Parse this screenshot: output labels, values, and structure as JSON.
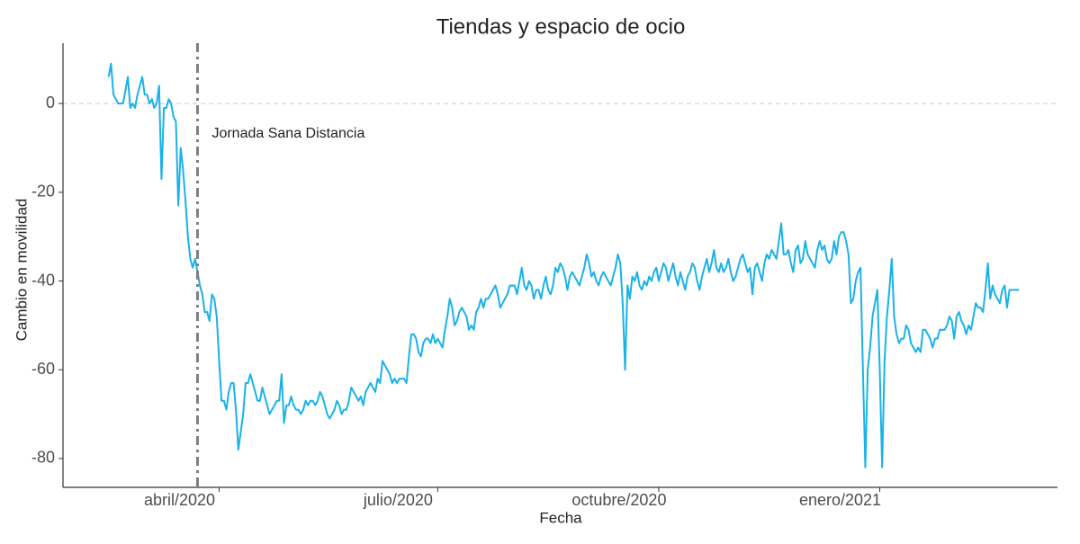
{
  "chart_data": {
    "type": "line",
    "title": "Tiendas y espacio de ocio",
    "xlabel": "Fecha",
    "ylabel": "Cambio en movilidad",
    "xlim": [
      -19,
      395
    ],
    "ylim": [
      -86.5,
      13.6
    ],
    "xticks": [
      {
        "value": 46,
        "label": "abril/2020"
      },
      {
        "value": 137,
        "label": "julio/2020"
      },
      {
        "value": 229,
        "label": "octubre/2020"
      },
      {
        "value": 321,
        "label": "enero/2021"
      }
    ],
    "yticks": [
      0,
      -20,
      -40,
      -60,
      -80
    ],
    "hline": 0,
    "vline": {
      "x": 37,
      "label": "Jornada Sana Distancia",
      "color": "#7f7f7f"
    },
    "series": [
      {
        "name": "Tiendas y espacio de ocio",
        "color": "#1ab2e8",
        "values": [
          6,
          9,
          2,
          1,
          0,
          0,
          0,
          3,
          6,
          -1,
          0,
          -1,
          2,
          4,
          6,
          2,
          2,
          0,
          1,
          -1,
          0,
          4,
          -17,
          -1,
          -1,
          1,
          0,
          -3,
          -4,
          -23,
          -10,
          -15,
          -22,
          -30,
          -35,
          -37,
          -35,
          -38,
          -41,
          -43,
          -47,
          -47,
          -49,
          -43,
          -44,
          -48,
          -58,
          -67,
          -67,
          -69,
          -65,
          -63,
          -63,
          -69,
          -78,
          -74,
          -70,
          -63,
          -63,
          -61,
          -63,
          -65,
          -67,
          -67,
          -64,
          -66,
          -68,
          -70,
          -69,
          -68,
          -67,
          -67,
          -61,
          -72,
          -68,
          -68,
          -66,
          -68,
          -69,
          -69,
          -70,
          -69,
          -67,
          -68,
          -67,
          -67,
          -68,
          -67,
          -65,
          -66,
          -68,
          -70,
          -71,
          -70,
          -69,
          -67,
          -68,
          -70,
          -69,
          -69,
          -67,
          -64,
          -65,
          -66,
          -67,
          -66,
          -68,
          -65,
          -64,
          -63,
          -64,
          -65,
          -62,
          -63,
          -58,
          -59,
          -60,
          -61,
          -63,
          -62,
          -63,
          -62,
          -62,
          -62,
          -63,
          -57,
          -52,
          -52,
          -53,
          -56,
          -57,
          -54,
          -53,
          -53,
          -54,
          -52,
          -54,
          -53,
          -54,
          -55,
          -51,
          -48,
          -44,
          -46,
          -50,
          -49,
          -47,
          -46,
          -47,
          -48,
          -51,
          -50,
          -51,
          -47,
          -46,
          -44,
          -46,
          -44,
          -44,
          -43,
          -42,
          -41,
          -43,
          -46,
          -45,
          -44,
          -43,
          -41,
          -41,
          -41,
          -43,
          -40,
          -37,
          -41,
          -42,
          -40,
          -41,
          -44,
          -42,
          -42,
          -44,
          -41,
          -39,
          -42,
          -43,
          -41,
          -37,
          -38,
          -36,
          -37,
          -39,
          -42,
          -39,
          -38,
          -39,
          -40,
          -41,
          -39,
          -37,
          -34,
          -36,
          -39,
          -38,
          -40,
          -41,
          -39,
          -38,
          -39,
          -40,
          -41,
          -39,
          -37,
          -34,
          -36,
          -45,
          -60,
          -41,
          -44,
          -39,
          -40,
          -38,
          -41,
          -42,
          -40,
          -41,
          -39,
          -40,
          -38,
          -37,
          -40,
          -38,
          -36,
          -37,
          -40,
          -38,
          -36,
          -39,
          -41,
          -38,
          -40,
          -42,
          -39,
          -38,
          -36,
          -37,
          -40,
          -42,
          -39,
          -37,
          -35,
          -38,
          -36,
          -33,
          -37,
          -38,
          -36,
          -38,
          -37,
          -35,
          -38,
          -40,
          -39,
          -37,
          -35,
          -34,
          -36,
          -38,
          -37,
          -43,
          -37,
          -36,
          -38,
          -40,
          -36,
          -34,
          -35,
          -33,
          -34,
          -35,
          -31,
          -27,
          -34,
          -34,
          -33,
          -36,
          -38,
          -33,
          -32,
          -36,
          -35,
          -31,
          -34,
          -35,
          -36,
          -37,
          -33,
          -31,
          -33,
          -32,
          -35,
          -36,
          -35,
          -31,
          -34,
          -30,
          -29,
          -29,
          -31,
          -34,
          -45,
          -44,
          -40,
          -38,
          -37,
          -60,
          -82,
          -60,
          -55,
          -48,
          -45,
          -42,
          -60,
          -82,
          -58,
          -48,
          -42,
          -35,
          -48,
          -52,
          -54,
          -53,
          -53,
          -50,
          -51,
          -54,
          -55,
          -56,
          -55,
          -56,
          -51,
          -51,
          -52,
          -53,
          -55,
          -53,
          -53,
          -51,
          -51,
          -51,
          -50,
          -48,
          -49,
          -53,
          -48,
          -47,
          -49,
          -50,
          -52,
          -50,
          -51,
          -48,
          -45,
          -46,
          -46,
          -47,
          -42,
          -36,
          -44,
          -41,
          -43,
          -44,
          -45,
          -42,
          -41,
          -46,
          -42,
          -42,
          -42,
          -42,
          -42
        ]
      }
    ]
  }
}
